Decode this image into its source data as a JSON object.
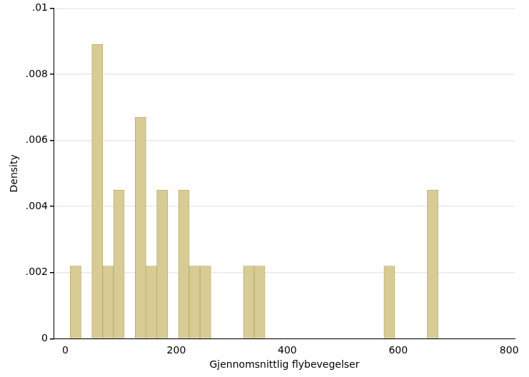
{
  "chart_data": {
    "type": "histogram",
    "x_label": "Gjennomsnittlig flybevegelser",
    "y_label": "Density",
    "bins": [
      8.8,
      28.3,
      47.8,
      67.3,
      86.8,
      106.3,
      125.8,
      145.3,
      164.8,
      184.3,
      203.8,
      223.3,
      242.8,
      262.3,
      281.8,
      301.3,
      320.8,
      340.3,
      359.8,
      379.3,
      398.8,
      418.3,
      437.8,
      457.3,
      476.8,
      496.3,
      515.8,
      535.3,
      554.8,
      574.3,
      593.8,
      613.3,
      632.8,
      652.3,
      671.8
    ],
    "values": [
      0.0022,
      0,
      0.0089,
      0.0022,
      0.0045,
      0,
      0.0067,
      0.0022,
      0.0045,
      0,
      0.0045,
      0.0022,
      0.0022,
      0,
      0,
      0,
      0.0022,
      0.0022,
      0,
      0,
      0,
      0,
      0,
      0,
      0,
      0,
      0,
      0,
      0,
      0.0022,
      0,
      0,
      0,
      0.0045
    ],
    "color": "#d8cc94",
    "xlim": [
      -20,
      810
    ],
    "xticks": [
      0,
      200,
      400,
      600,
      800
    ],
    "ylim": [
      0,
      0.01
    ],
    "yticks": [
      0,
      {
        "value": 0.002,
        "label": ".002"
      },
      {
        "value": 0.004,
        "label": ".004"
      },
      {
        "value": 0.006,
        "label": ".006"
      },
      {
        "value": 0.008,
        "label": ".008"
      },
      {
        "value": 0.01,
        "label": ".01"
      }
    ],
    "grid": true
  }
}
